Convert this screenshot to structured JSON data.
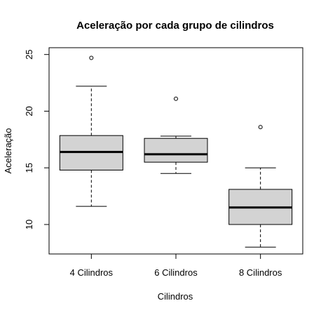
{
  "chart_data": {
    "type": "boxplot",
    "title": "Aceleração por cada grupo de cilindros",
    "xlabel": "Cilindros",
    "ylabel": "Aceleração",
    "categories": [
      "4 Cilindros",
      "6 Cilindros",
      "8 Cilindros"
    ],
    "yticks": [
      10,
      15,
      20,
      25
    ],
    "ylim": [
      7.4,
      25.6
    ],
    "boxes": [
      {
        "category": "4 Cilindros",
        "whisker_low": 11.6,
        "q1": 14.8,
        "median": 16.4,
        "q3": 17.85,
        "whisker_high": 22.2,
        "outliers": [
          24.7
        ]
      },
      {
        "category": "6 Cilindros",
        "whisker_low": 14.5,
        "q1": 15.5,
        "median": 16.2,
        "q3": 17.6,
        "whisker_high": 17.8,
        "outliers": [
          21.1
        ]
      },
      {
        "category": "8 Cilindros",
        "whisker_low": 8.0,
        "q1": 10.0,
        "median": 11.5,
        "q3": 13.1,
        "whisker_high": 15.0,
        "outliers": [
          18.6
        ]
      }
    ],
    "grid": false,
    "colors": {
      "box_fill": "#d3d3d3",
      "stroke": "#000000"
    }
  }
}
